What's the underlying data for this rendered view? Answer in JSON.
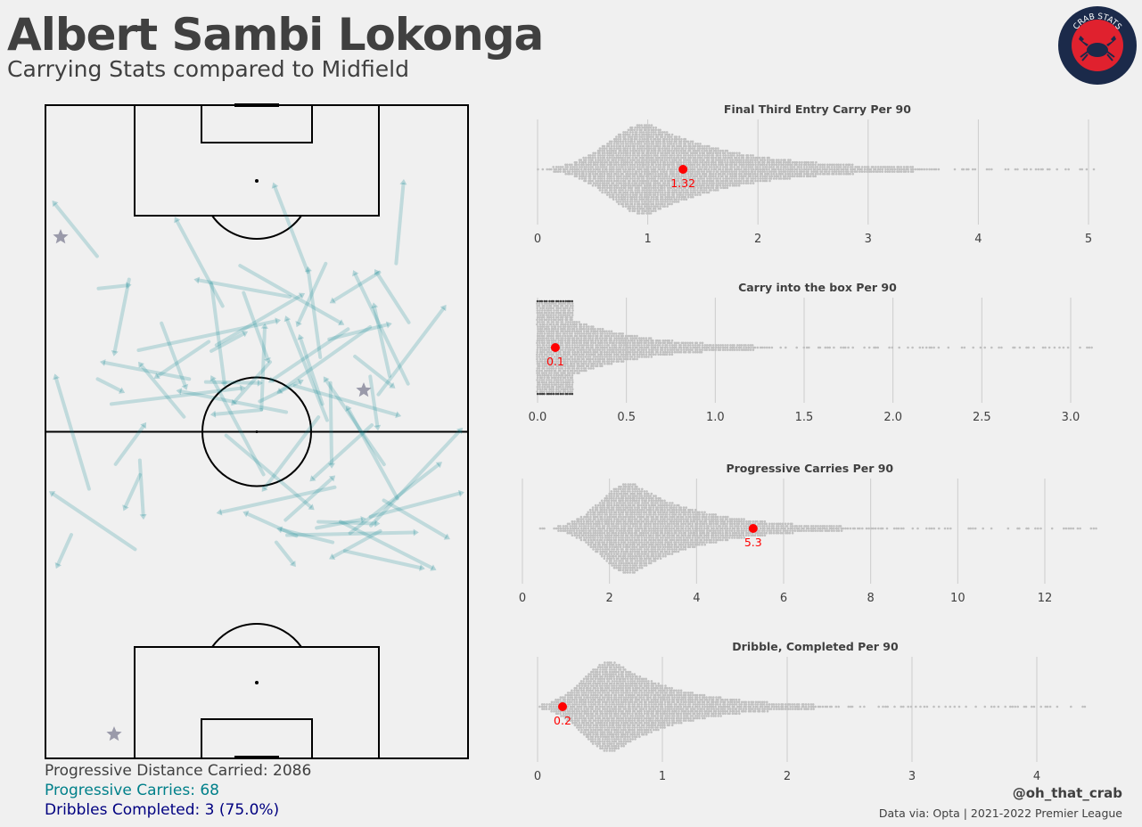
{
  "header": {
    "title": "Albert Sambi Lokonga",
    "subtitle": "Carrying Stats compared to Midfield",
    "logo_text": "CRAB STATS"
  },
  "stats": {
    "prog_distance": "Progressive Distance Carried: 2086",
    "prog_carries": "Progressive Carries: 68",
    "dribbles": "Dribbles Completed: 3 (75.0%)"
  },
  "footer": {
    "handle": "@oh_that_crab",
    "source": "Data via: Opta | 2021-2022 Premier League"
  },
  "colors": {
    "background": "#f0f0f0",
    "text": "#404040",
    "carry_arrow": "#00808a",
    "dribble_star": "#9a9aaa",
    "highlight": "#ff0000",
    "swarm_dot": "#c0c0c0",
    "logo_ring": "#1b2a4a",
    "logo_inner": "#e0212e"
  },
  "chart_data": [
    {
      "type": "scatter",
      "title": "Final Third Entry Carry Per 90",
      "xlim": [
        0,
        5.08
      ],
      "ticks": [
        0,
        1,
        2,
        3,
        4,
        5
      ],
      "tick_labels": [
        "0",
        "1",
        "2",
        "3",
        "4",
        "5"
      ],
      "player_value": 1.32,
      "player_label": "1.32",
      "distribution": {
        "mode": 1.0,
        "spread": 0.9,
        "max": 5.05,
        "floor": 0
      }
    },
    {
      "type": "scatter",
      "title": "Carry into the box Per 90",
      "xlim": [
        0,
        3.15
      ],
      "ticks": [
        0,
        0.5,
        1,
        1.5,
        2,
        2.5,
        3
      ],
      "tick_labels": [
        "0.0",
        "0.5",
        "1.0",
        "1.5",
        "2.0",
        "2.5",
        "3.0"
      ],
      "player_value": 0.1,
      "player_label": "0.1",
      "distribution": {
        "mode": 0.0,
        "spread": 0.45,
        "max": 3.15,
        "floor": 0
      }
    },
    {
      "type": "scatter",
      "title": "Progressive Carries Per 90",
      "xlim": [
        0,
        13.2
      ],
      "ticks": [
        0,
        2,
        4,
        6,
        8,
        10,
        12
      ],
      "tick_labels": [
        "0",
        "2",
        "4",
        "6",
        "8",
        "10",
        "12"
      ],
      "player_value": 5.3,
      "player_label": "5.3",
      "distribution": {
        "mode": 2.5,
        "spread": 1.8,
        "max": 13.2,
        "floor": 0.4
      }
    },
    {
      "type": "scatter",
      "title": "Dribble, Completed Per 90",
      "xlim": [
        0,
        4.45
      ],
      "ticks": [
        0,
        1,
        2,
        3,
        4
      ],
      "tick_labels": [
        "0",
        "1",
        "2",
        "3",
        "4"
      ],
      "player_value": 0.2,
      "player_label": "0.2",
      "distribution": {
        "mode": 0.6,
        "spread": 0.6,
        "max": 4.4,
        "floor": 0
      }
    }
  ]
}
